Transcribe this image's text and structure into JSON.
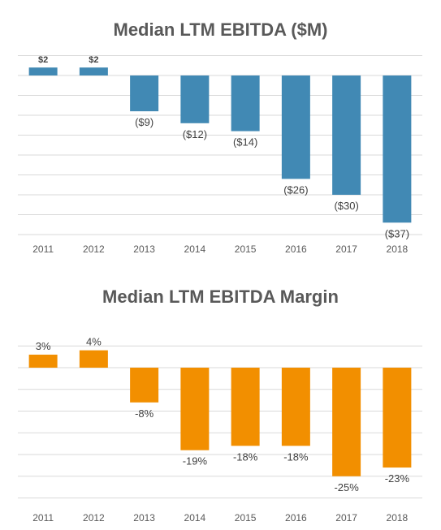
{
  "chart_data": [
    {
      "type": "bar",
      "title": "Median LTM EBITDA ($M)",
      "xlabel": "",
      "ylabel": "",
      "categories": [
        "2011",
        "2012",
        "2013",
        "2014",
        "2015",
        "2016",
        "2017",
        "2018"
      ],
      "values": [
        2,
        2,
        -9,
        -12,
        -14,
        -26,
        -30,
        -37
      ],
      "data_labels": [
        "$2",
        "$2",
        "($9)",
        "($12)",
        "($14)",
        "($26)",
        "($30)",
        "($37)"
      ],
      "ylim": [
        -40,
        5
      ],
      "grid": true,
      "color": "#4189b4"
    },
    {
      "type": "bar",
      "title": "Median LTM EBITDA Margin",
      "xlabel": "",
      "ylabel": "",
      "categories": [
        "2011",
        "2012",
        "2013",
        "2014",
        "2015",
        "2016",
        "2017",
        "2018"
      ],
      "values": [
        3,
        4,
        -8,
        -19,
        -18,
        -18,
        -25,
        -23
      ],
      "data_labels": [
        "3%",
        "4%",
        "-8%",
        "-19%",
        "-18%",
        "-18%",
        "-25%",
        "-23%"
      ],
      "ylim": [
        -30,
        5
      ],
      "grid": true,
      "color": "#f28f00"
    }
  ]
}
